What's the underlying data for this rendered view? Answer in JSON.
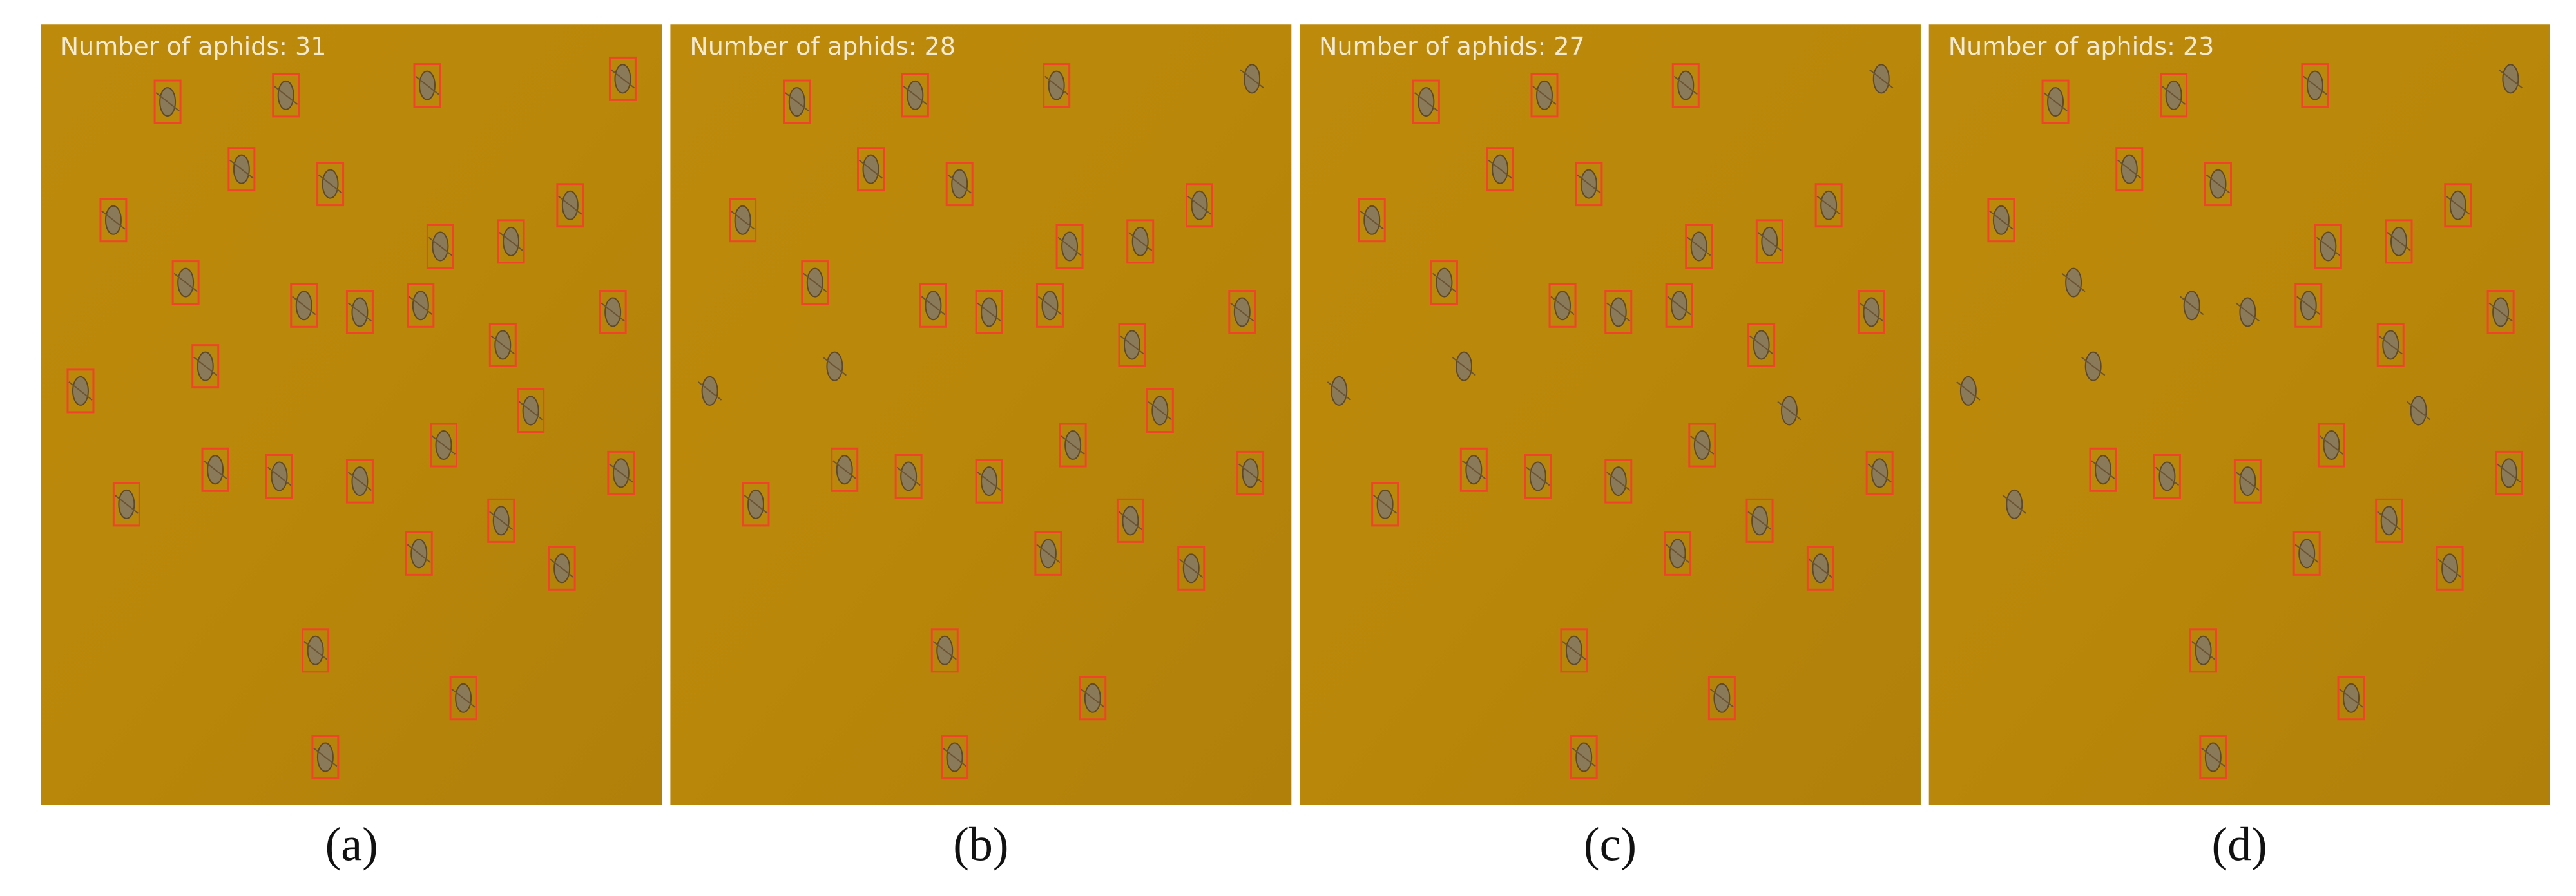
{
  "panels": [
    {
      "count_text": "Number of aphids: 31",
      "label": "(a)"
    },
    {
      "count_text": "Number of aphids: 28",
      "label": "(b)"
    },
    {
      "count_text": "Number of aphids: 27",
      "label": "(c)"
    },
    {
      "count_text": "Number of aphids: 23",
      "label": "(d)"
    }
  ]
}
